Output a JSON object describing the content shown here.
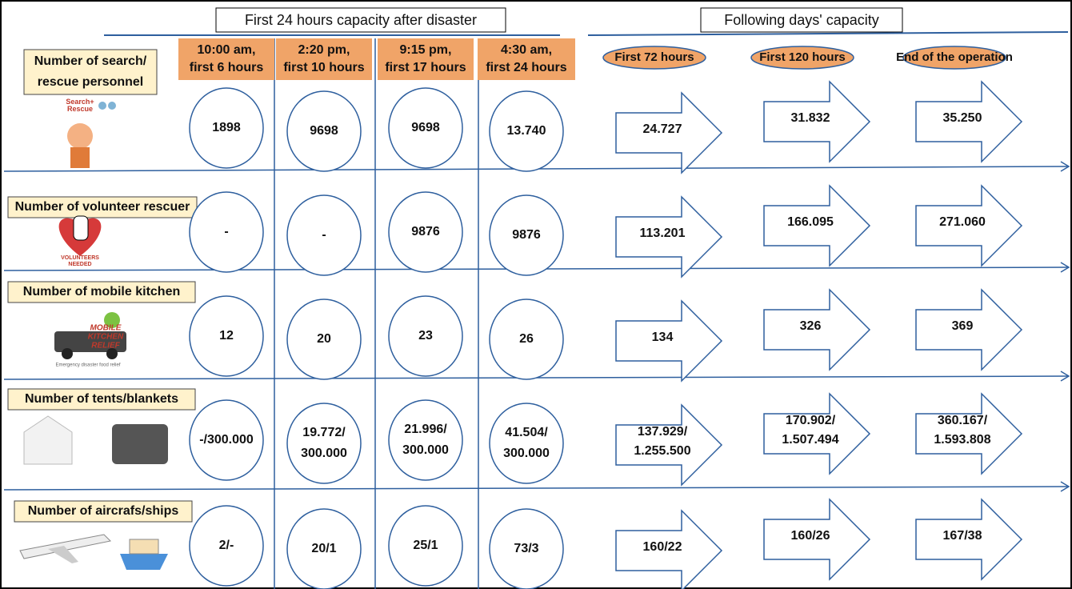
{
  "headers": {
    "first_24h": "First 24 hours capacity after disaster",
    "following_days": "Following days' capacity"
  },
  "time_columns": [
    [
      "10:00 am,",
      "first 6 hours"
    ],
    [
      "2:20 pm,",
      "first 10 hours"
    ],
    [
      "9:15 pm,",
      "first 17 hours"
    ],
    [
      "4:30 am,",
      "first 24 hours"
    ]
  ],
  "day_columns": [
    "First 72 hours",
    "First 120 hours",
    "End of the operation"
  ],
  "rows": [
    {
      "label": [
        "Number of search/",
        "rescue personnel"
      ],
      "icon_text": [
        "Search+",
        "Rescue"
      ],
      "first_24h": [
        [
          "1898"
        ],
        [
          "9698"
        ],
        [
          "9698"
        ],
        [
          "13.740"
        ]
      ],
      "following_days": [
        [
          "24.727"
        ],
        [
          "31.832"
        ],
        [
          "35.250"
        ]
      ]
    },
    {
      "label": [
        "Number of volunteer rescuer"
      ],
      "icon_text": [
        "VOLUNTEERS",
        "NEEDED"
      ],
      "first_24h": [
        [
          "-"
        ],
        [
          "-"
        ],
        [
          "9876"
        ],
        [
          "9876"
        ]
      ],
      "following_days": [
        [
          "113.201"
        ],
        [
          "166.095"
        ],
        [
          "271.060"
        ]
      ]
    },
    {
      "label": [
        "Number of mobile kitchen"
      ],
      "icon_text": [
        "MOBILE",
        "KITCHEN",
        "RELIEF",
        "Emergency disaster food relief"
      ],
      "first_24h": [
        [
          "12"
        ],
        [
          "20"
        ],
        [
          "23"
        ],
        [
          "26"
        ]
      ],
      "following_days": [
        [
          "134"
        ],
        [
          "326"
        ],
        [
          "369"
        ]
      ]
    },
    {
      "label": [
        "Number of tents/blankets"
      ],
      "first_24h": [
        [
          "-/300.000"
        ],
        [
          "19.772/",
          "300.000"
        ],
        [
          "21.996/",
          "300.000"
        ],
        [
          "41.504/",
          "300.000"
        ]
      ],
      "following_days": [
        [
          "137.929/",
          "1.255.500"
        ],
        [
          "170.902/",
          "1.507.494"
        ],
        [
          "360.167/",
          "1.593.808"
        ]
      ]
    },
    {
      "label": [
        "Number of aircrafs/ships"
      ],
      "first_24h": [
        [
          "2/-"
        ],
        [
          "20/1"
        ],
        [
          "25/1"
        ],
        [
          "73/3"
        ]
      ],
      "following_days": [
        [
          "160/22"
        ],
        [
          "160/26"
        ],
        [
          "167/38"
        ]
      ]
    }
  ]
}
